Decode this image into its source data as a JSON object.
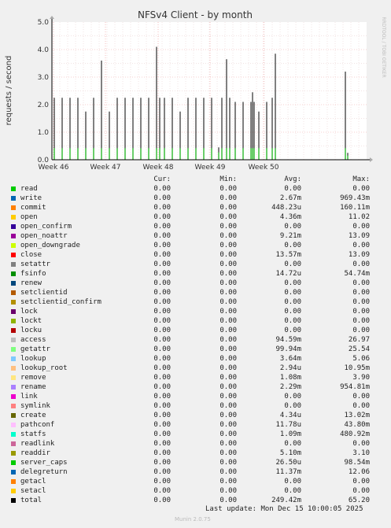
{
  "chart_data": {
    "type": "area",
    "title": "NFSv4 Client - by month",
    "ylabel": "requests / second",
    "side_label": "RRDTOOL / TOBI OETIKER",
    "ylim": [
      0,
      5
    ],
    "y_ticks": [
      "0.0",
      "1.0",
      "2.0",
      "3.0",
      "4.0",
      "5.0"
    ],
    "x_ticks": [
      "Week 46",
      "Week 47",
      "Week 48",
      "Week 49",
      "Week 50"
    ],
    "grid": true,
    "x_domain": [
      0,
      40
    ],
    "x_tick_positions": [
      0.2,
      6.8,
      13.5,
      20.1,
      26.9
    ],
    "series": [
      {
        "name": "total",
        "x": [
          0.3,
          1.3,
          2.3,
          3.3,
          4.3,
          5.3,
          6.3,
          7.3,
          8.3,
          9.3,
          10.3,
          11.3,
          12.3,
          13.3,
          13.7,
          14.3,
          15.3,
          16.3,
          17.3,
          18.3,
          19.3,
          20.3,
          21.2,
          21.6,
          22.2,
          22.6,
          23.3,
          24.3,
          25.3,
          25.5,
          25.7,
          26.3,
          27.3,
          28.0,
          28.4,
          37.3,
          37.6
        ],
        "values": [
          2.25,
          2.25,
          2.25,
          2.25,
          1.75,
          2.25,
          3.6,
          1.75,
          2.25,
          2.25,
          2.25,
          2.25,
          2.25,
          4.1,
          2.25,
          2.25,
          2.25,
          1.75,
          2.25,
          2.25,
          2.25,
          2.25,
          0.45,
          2.25,
          3.65,
          2.25,
          2.1,
          2.1,
          2.1,
          2.45,
          2.1,
          1.75,
          2.1,
          2.25,
          3.85,
          3.2,
          0.25
        ]
      }
    ],
    "background_color": "#ffffff",
    "line_color": "#000000"
  },
  "legend": {
    "headers": [
      "Cur:",
      "Min:",
      "Avg:",
      "Max:"
    ],
    "rows": [
      {
        "name": "read",
        "color": "#00cc00",
        "cur": "0.00",
        "min": "0.00",
        "avg": "0.00",
        "max": "0.00"
      },
      {
        "name": "write",
        "color": "#0066b3",
        "cur": "0.00",
        "min": "0.00",
        "avg": "2.67m",
        "max": "969.43m"
      },
      {
        "name": "commit",
        "color": "#ff8000",
        "cur": "0.00",
        "min": "0.00",
        "avg": "448.23u",
        "max": "160.11m"
      },
      {
        "name": "open",
        "color": "#ffcc00",
        "cur": "0.00",
        "min": "0.00",
        "avg": "4.36m",
        "max": "11.02"
      },
      {
        "name": "open_confirm",
        "color": "#330099",
        "cur": "0.00",
        "min": "0.00",
        "avg": "0.00",
        "max": "0.00"
      },
      {
        "name": "open_noattr",
        "color": "#990099",
        "cur": "0.00",
        "min": "0.00",
        "avg": "9.21m",
        "max": "13.09"
      },
      {
        "name": "open_downgrade",
        "color": "#ccff00",
        "cur": "0.00",
        "min": "0.00",
        "avg": "0.00",
        "max": "0.00"
      },
      {
        "name": "close",
        "color": "#ff0000",
        "cur": "0.00",
        "min": "0.00",
        "avg": "13.57m",
        "max": "13.09"
      },
      {
        "name": "setattr",
        "color": "#808080",
        "cur": "0.00",
        "min": "0.00",
        "avg": "0.00",
        "max": "0.00"
      },
      {
        "name": "fsinfo",
        "color": "#008f00",
        "cur": "0.00",
        "min": "0.00",
        "avg": "14.72u",
        "max": "54.74m"
      },
      {
        "name": "renew",
        "color": "#00487d",
        "cur": "0.00",
        "min": "0.00",
        "avg": "0.00",
        "max": "0.00"
      },
      {
        "name": "setclientid",
        "color": "#b35a00",
        "cur": "0.00",
        "min": "0.00",
        "avg": "0.00",
        "max": "0.00"
      },
      {
        "name": "setclientid_confirm",
        "color": "#b38f00",
        "cur": "0.00",
        "min": "0.00",
        "avg": "0.00",
        "max": "0.00"
      },
      {
        "name": "lock",
        "color": "#6b006b",
        "cur": "0.00",
        "min": "0.00",
        "avg": "0.00",
        "max": "0.00"
      },
      {
        "name": "lockt",
        "color": "#8fb300",
        "cur": "0.00",
        "min": "0.00",
        "avg": "0.00",
        "max": "0.00"
      },
      {
        "name": "locku",
        "color": "#b30000",
        "cur": "0.00",
        "min": "0.00",
        "avg": "0.00",
        "max": "0.00"
      },
      {
        "name": "access",
        "color": "#bebebe",
        "cur": "0.00",
        "min": "0.00",
        "avg": "94.59m",
        "max": "26.97"
      },
      {
        "name": "getattr",
        "color": "#80ff80",
        "cur": "0.00",
        "min": "0.00",
        "avg": "99.94m",
        "max": "25.54"
      },
      {
        "name": "lookup",
        "color": "#80c9ff",
        "cur": "0.00",
        "min": "0.00",
        "avg": "3.64m",
        "max": "5.06"
      },
      {
        "name": "lookup_root",
        "color": "#ffc080",
        "cur": "0.00",
        "min": "0.00",
        "avg": "2.94u",
        "max": "10.95m"
      },
      {
        "name": "remove",
        "color": "#ffe680",
        "cur": "0.00",
        "min": "0.00",
        "avg": "1.08m",
        "max": "3.90"
      },
      {
        "name": "rename",
        "color": "#aa80ff",
        "cur": "0.00",
        "min": "0.00",
        "avg": "2.29m",
        "max": "954.81m"
      },
      {
        "name": "link",
        "color": "#ee00cc",
        "cur": "0.00",
        "min": "0.00",
        "avg": "0.00",
        "max": "0.00"
      },
      {
        "name": "symlink",
        "color": "#ff8080",
        "cur": "0.00",
        "min": "0.00",
        "avg": "0.00",
        "max": "0.00"
      },
      {
        "name": "create",
        "color": "#666600",
        "cur": "0.00",
        "min": "0.00",
        "avg": "4.34u",
        "max": "13.02m"
      },
      {
        "name": "pathconf",
        "color": "#ffbfff",
        "cur": "0.00",
        "min": "0.00",
        "avg": "11.78u",
        "max": "43.80m"
      },
      {
        "name": "statfs",
        "color": "#00ffcc",
        "cur": "0.00",
        "min": "0.00",
        "avg": "1.09m",
        "max": "480.92m"
      },
      {
        "name": "readlink",
        "color": "#cc6699",
        "cur": "0.00",
        "min": "0.00",
        "avg": "0.00",
        "max": "0.00"
      },
      {
        "name": "readdir",
        "color": "#999900",
        "cur": "0.00",
        "min": "0.00",
        "avg": "5.10m",
        "max": "3.10"
      },
      {
        "name": "server_caps",
        "color": "#00cc00",
        "cur": "0.00",
        "min": "0.00",
        "avg": "26.50u",
        "max": "98.54m"
      },
      {
        "name": "delegreturn",
        "color": "#0066b3",
        "cur": "0.00",
        "min": "0.00",
        "avg": "11.37m",
        "max": "12.06"
      },
      {
        "name": "getacl",
        "color": "#ff8000",
        "cur": "0.00",
        "min": "0.00",
        "avg": "0.00",
        "max": "0.00"
      },
      {
        "name": "setacl",
        "color": "#ffcc00",
        "cur": "0.00",
        "min": "0.00",
        "avg": "0.00",
        "max": "0.00"
      },
      {
        "name": "total",
        "color": "#000000",
        "cur": "0.00",
        "min": "0.00",
        "avg": "249.42m",
        "max": "65.20"
      }
    ]
  },
  "footer": {
    "last_update": "Last update: Mon Dec 15 10:00:05 2025",
    "version": "Munin 2.0.75"
  }
}
